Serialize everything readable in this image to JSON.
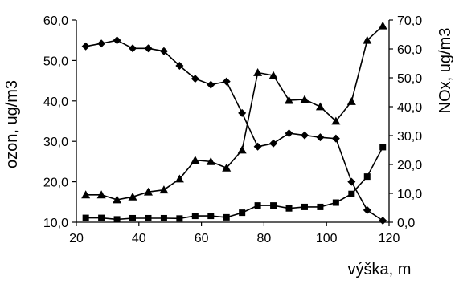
{
  "chart_data": {
    "type": "line",
    "title": "",
    "xlabel": "výška, m",
    "ylabel_left": "ozon, ug/m3",
    "ylabel_right": "NOx, ug/m3",
    "x": [
      23,
      28,
      33,
      38,
      43,
      48,
      53,
      58,
      63,
      68,
      73,
      78,
      83,
      88,
      93,
      98,
      103,
      108,
      113,
      118
    ],
    "xlim": [
      20,
      120
    ],
    "xticks": [
      "20",
      "40",
      "60",
      "80",
      "100",
      "120"
    ],
    "ylim_left": [
      10,
      60
    ],
    "yticks_left": [
      "10,0",
      "20,0",
      "30,0",
      "40,0",
      "50,0",
      "60,0"
    ],
    "ylim_right": [
      0,
      70
    ],
    "yticks_right": [
      "0,0",
      "10,0",
      "20,0",
      "30,0",
      "40,0",
      "50,0",
      "60,0",
      "70,0"
    ],
    "grid": false,
    "legend": "none",
    "series": [
      {
        "marker": "diamond",
        "axis": "left",
        "color": "#000000",
        "values": [
          53.5,
          54.2,
          55.0,
          53.0,
          53.0,
          52.3,
          48.7,
          45.5,
          44.0,
          44.8,
          37.0,
          28.7,
          29.5,
          32.0,
          31.5,
          31.0,
          30.7,
          20.0,
          13.0,
          10.4
        ]
      },
      {
        "marker": "triangle",
        "axis": "right",
        "color": "#000000",
        "values": [
          9.5,
          9.5,
          7.8,
          8.8,
          10.5,
          11.2,
          15.0,
          21.5,
          21.0,
          18.8,
          25.0,
          51.8,
          50.8,
          42.2,
          42.5,
          40.0,
          35.0,
          41.8,
          63.0,
          68.0
        ]
      },
      {
        "marker": "square",
        "axis": "right",
        "color": "#000000",
        "values": [
          1.5,
          1.5,
          1.0,
          1.4,
          1.4,
          1.4,
          1.3,
          2.2,
          2.2,
          1.7,
          3.3,
          5.8,
          5.8,
          4.8,
          5.3,
          5.3,
          6.8,
          9.8,
          15.8,
          26.0
        ]
      }
    ]
  }
}
